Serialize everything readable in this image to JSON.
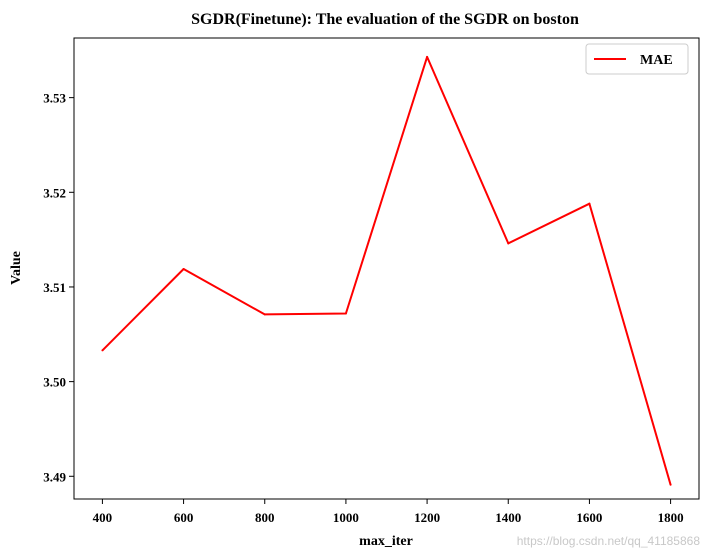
{
  "chart_data": {
    "type": "line",
    "title": "SGDR(Finetune): The evaluation of the SGDR on boston",
    "xlabel": "max_iter",
    "ylabel": "Value",
    "x": [
      400,
      600,
      800,
      1000,
      1200,
      1400,
      1600,
      1800
    ],
    "x_ticks": [
      "400",
      "600",
      "800",
      "1000",
      "1200",
      "1400",
      "1600",
      "1800"
    ],
    "y_ticks": [
      "3.49",
      "3.50",
      "3.51",
      "3.52",
      "3.53"
    ],
    "y_tick_values": [
      3.49,
      3.5,
      3.51,
      3.52,
      3.53
    ],
    "xlim": [
      330,
      1870
    ],
    "ylim": [
      3.4876,
      3.5363
    ],
    "grid": false,
    "legend_position": "top-right",
    "series": [
      {
        "name": "MAE",
        "color": "#ff0000",
        "values": [
          3.5033,
          3.5119,
          3.5071,
          3.5072,
          3.5343,
          3.5146,
          3.5188,
          3.4891
        ]
      }
    ]
  },
  "watermark": "https://blog.csdn.net/qq_41185868"
}
